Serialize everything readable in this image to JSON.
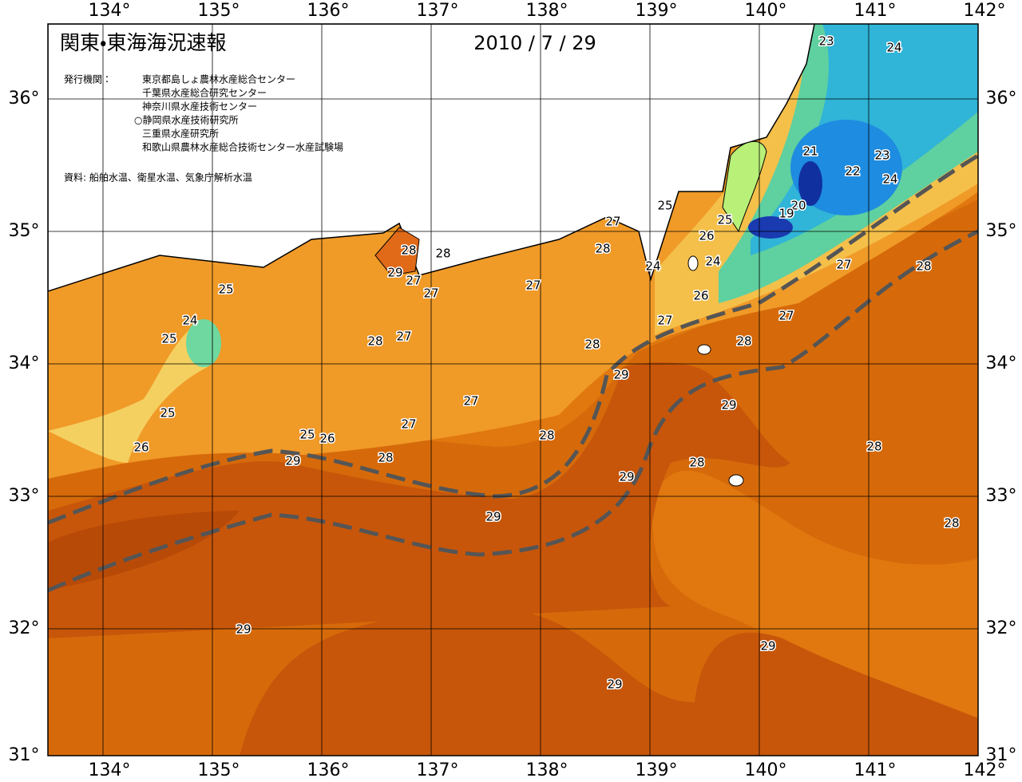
{
  "title": "関東・東海海況速報",
  "date": "2010 / 7 / 29",
  "issuers_label": "発行機関：",
  "issuers": [
    "東京都島しょ農林水産総合センター",
    "千葉県水産総合研究センター",
    "神奈川県水産技術センター",
    "○静岡県水産技術研究所",
    "三重県水産研究所",
    "和歌山県農林水産総合技術センター水産試験場"
  ],
  "source": "資料: 船舶水温、衛星水温、気象庁解析水温",
  "lon_ticks": [
    {
      "value": 134,
      "label": "134°"
    },
    {
      "value": 135,
      "label": "135°"
    },
    {
      "value": 136,
      "label": "136°"
    },
    {
      "value": 137,
      "label": "137°"
    },
    {
      "value": 138,
      "label": "138°"
    },
    {
      "value": 139,
      "label": "139°"
    },
    {
      "value": 140,
      "label": "140°"
    },
    {
      "value": 141,
      "label": "141°"
    },
    {
      "value": 142,
      "label": "142°"
    }
  ],
  "lat_ticks": [
    {
      "value": 31,
      "label": "31°"
    },
    {
      "value": 32,
      "label": "32°"
    },
    {
      "value": 33,
      "label": "33°"
    },
    {
      "value": 34,
      "label": "34°"
    },
    {
      "value": 35,
      "label": "35°"
    },
    {
      "value": 36,
      "label": "36°"
    }
  ],
  "contour_labels": [
    23,
    24,
    21,
    23,
    22,
    24,
    20,
    19,
    25,
    25,
    27,
    26,
    28,
    24,
    24,
    27,
    28,
    28,
    28,
    29,
    27,
    27,
    25,
    27,
    26,
    24,
    27,
    27,
    25,
    28,
    27,
    28,
    28,
    29,
    29,
    27,
    25,
    27,
    28,
    25,
    26,
    28,
    26,
    28,
    29,
    28,
    29,
    29,
    28,
    29,
    29,
    29
  ]
}
